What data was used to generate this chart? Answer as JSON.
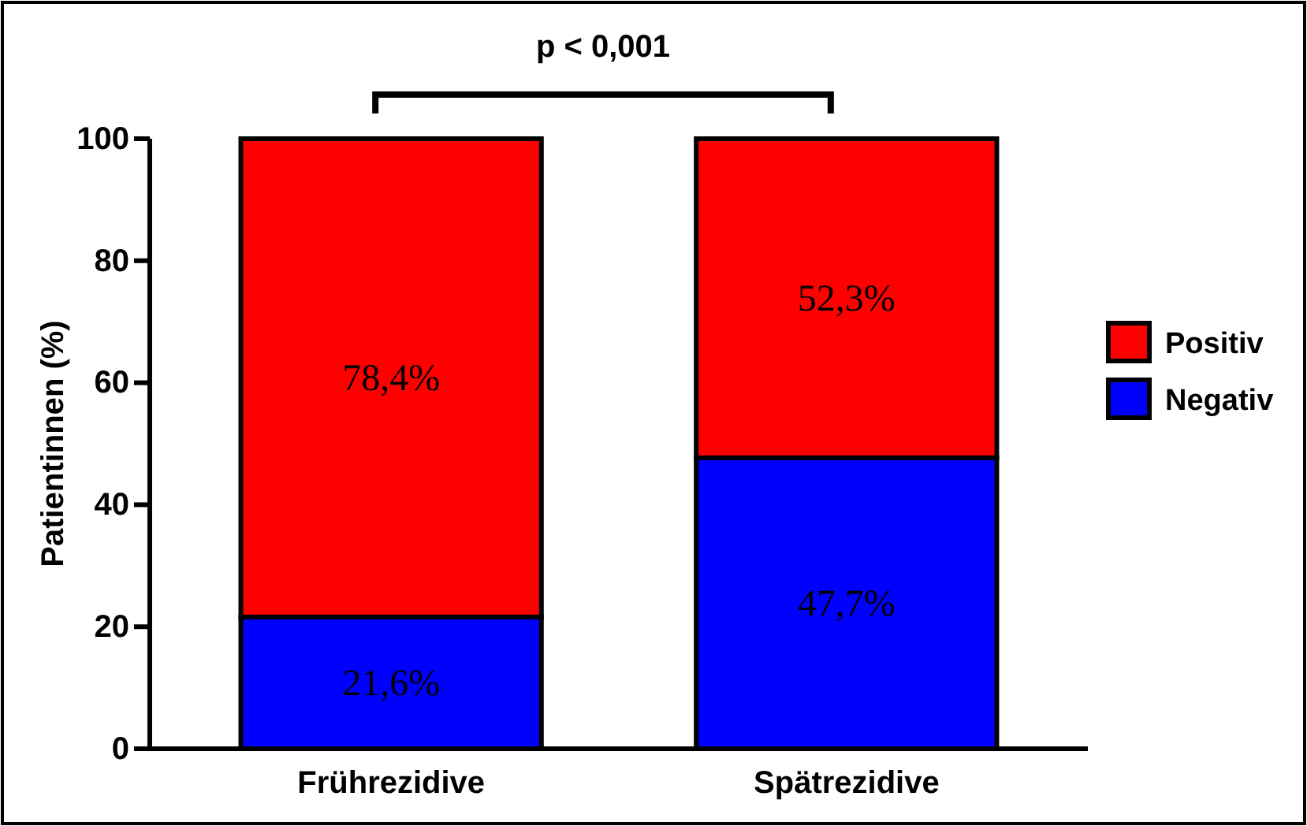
{
  "chart_data": {
    "type": "bar",
    "stacked": true,
    "categories": [
      "Frührezidive",
      "Spätrezidive"
    ],
    "ylabel": "Patientinnen (%)",
    "ylim": [
      0,
      100
    ],
    "yticks": [
      0,
      20,
      40,
      60,
      80,
      100
    ],
    "grid": false,
    "legend": "right",
    "series": [
      {
        "name": "Negativ",
        "color": "#0000ff",
        "values": [
          21.6,
          47.7
        ],
        "value_labels": [
          "21,6%",
          "47,7%"
        ]
      },
      {
        "name": "Positiv",
        "color": "#ff0000",
        "values": [
          78.4,
          52.3
        ],
        "value_labels": [
          "78,4%",
          "52,3%"
        ]
      }
    ],
    "annotations": [
      "p < 0,001"
    ]
  }
}
